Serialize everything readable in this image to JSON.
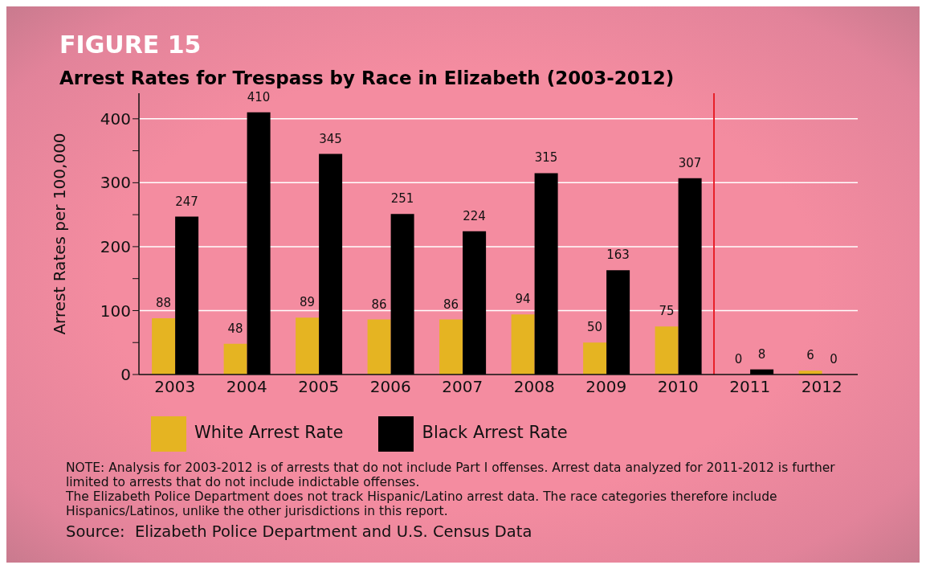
{
  "chart_data": {
    "type": "bar",
    "title": "Arrest Rates for Trespass by Race in Elizabeth (2003-2012)",
    "ylabel": "Arrest Rates per 100,000",
    "categories": [
      "2003",
      "2004",
      "2005",
      "2006",
      "2007",
      "2008",
      "2009",
      "2010",
      "2011",
      "2012"
    ],
    "series": [
      {
        "name": "White Arrest Rate",
        "color": "#e5b422",
        "values": [
          88,
          48,
          89,
          86,
          86,
          94,
          50,
          75,
          0,
          6
        ]
      },
      {
        "name": "Black Arrest Rate",
        "color": "#000000",
        "values": [
          247,
          410,
          345,
          251,
          224,
          315,
          163,
          307,
          8,
          0
        ]
      }
    ],
    "ylim": [
      0,
      440
    ],
    "yticks": [
      0,
      {
        "value": 50,
        "label": null
      },
      100,
      {
        "value": 150,
        "label": null
      },
      200,
      {
        "value": 250,
        "label": null
      },
      300,
      {
        "value": 350,
        "label": null
      },
      400
    ],
    "grid": "y",
    "legend": "bottom",
    "data_labels": true,
    "ref_lines": [
      {
        "axis": "x",
        "value": "2011",
        "color": "#e8202a"
      }
    ],
    "annotations": [
      "FIGURE 15",
      "NOTE: Analysis for 2003-2012 is of arrests that do not include Part I offenses. Arrest data analyzed for 2011-2012 is further limited to arrests that do not include indictable offenses.",
      "The Elizabeth Police Department does not track Hispanic/Latino arrest data. The race categories therefore include Hispanics/Latinos, unlike the other jurisdictions in this report.",
      "Source:  Elizabeth Police Department and U.S. Census Data"
    ]
  }
}
